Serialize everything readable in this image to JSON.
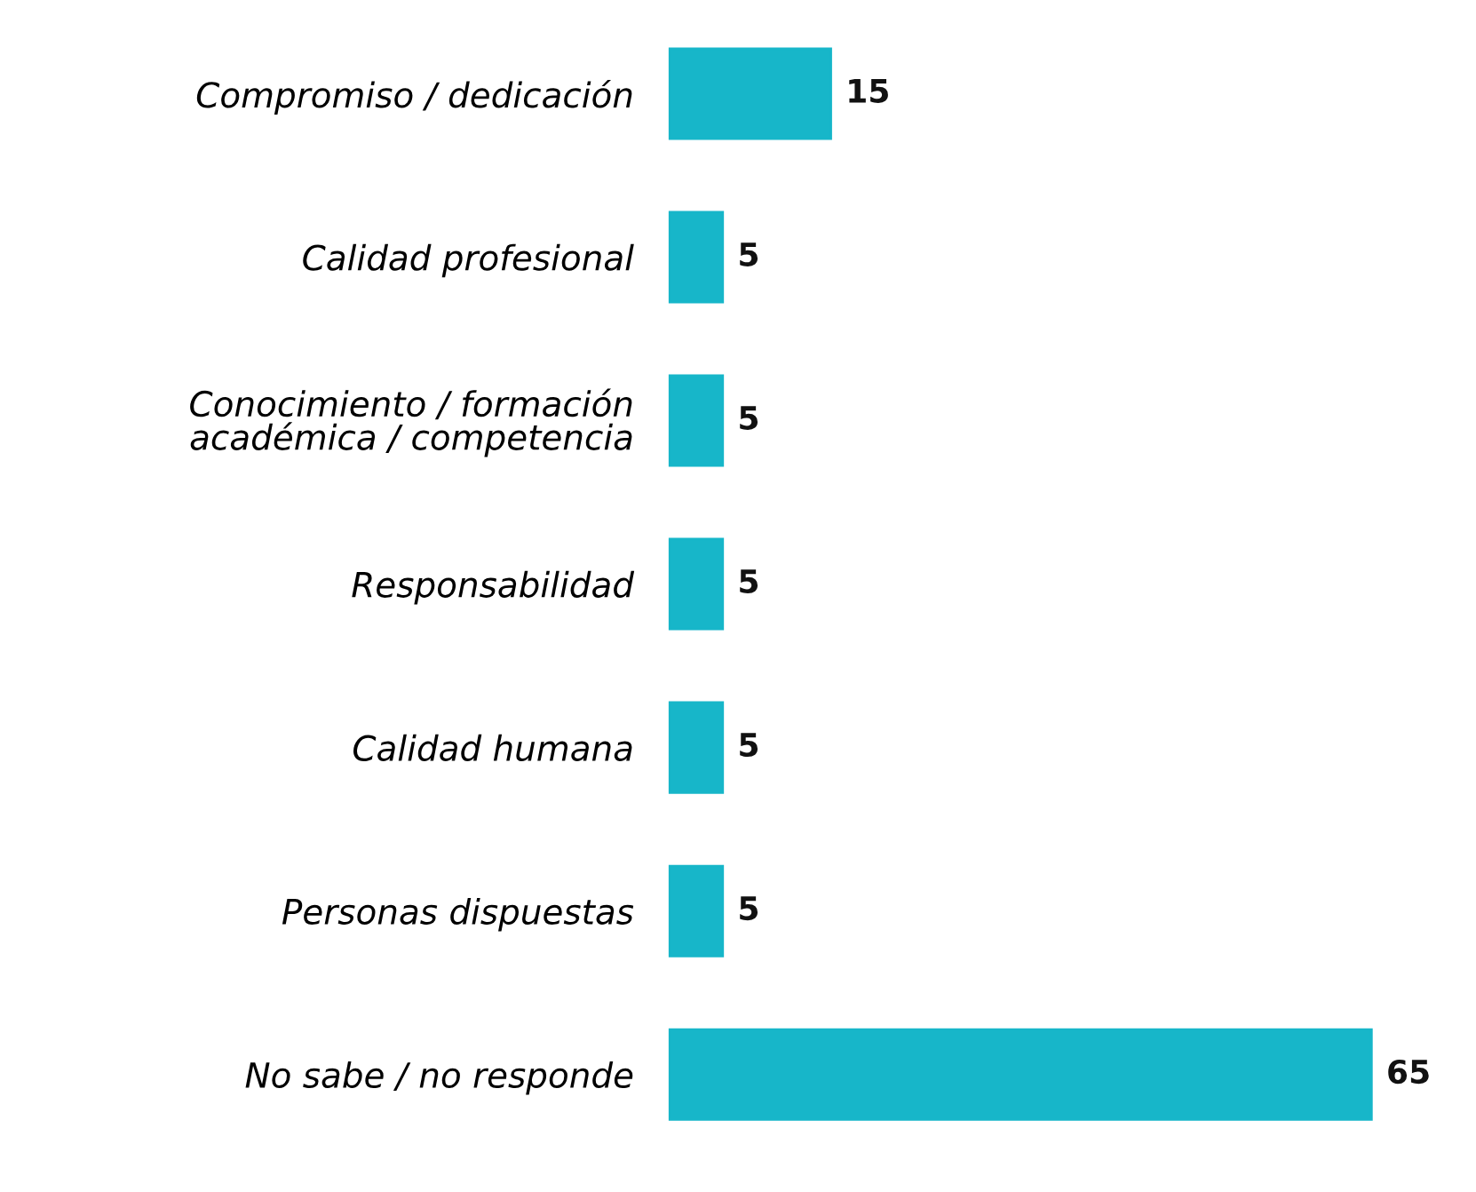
{
  "chart_data": {
    "type": "bar",
    "orientation": "horizontal",
    "categories": [
      "Compromiso / dedicación",
      "Calidad profesional",
      "Conocimiento / formación\nacadémica / competencia",
      "Responsabilidad",
      "Calidad humana",
      "Personas dispuestas",
      "No sabe / no responde"
    ],
    "series": [
      {
        "color": "#17b6c9",
        "values": [
          15,
          5,
          5,
          5,
          5,
          5,
          65
        ]
      }
    ],
    "data_labels": true,
    "tick_labels": "y",
    "grid": false
  }
}
